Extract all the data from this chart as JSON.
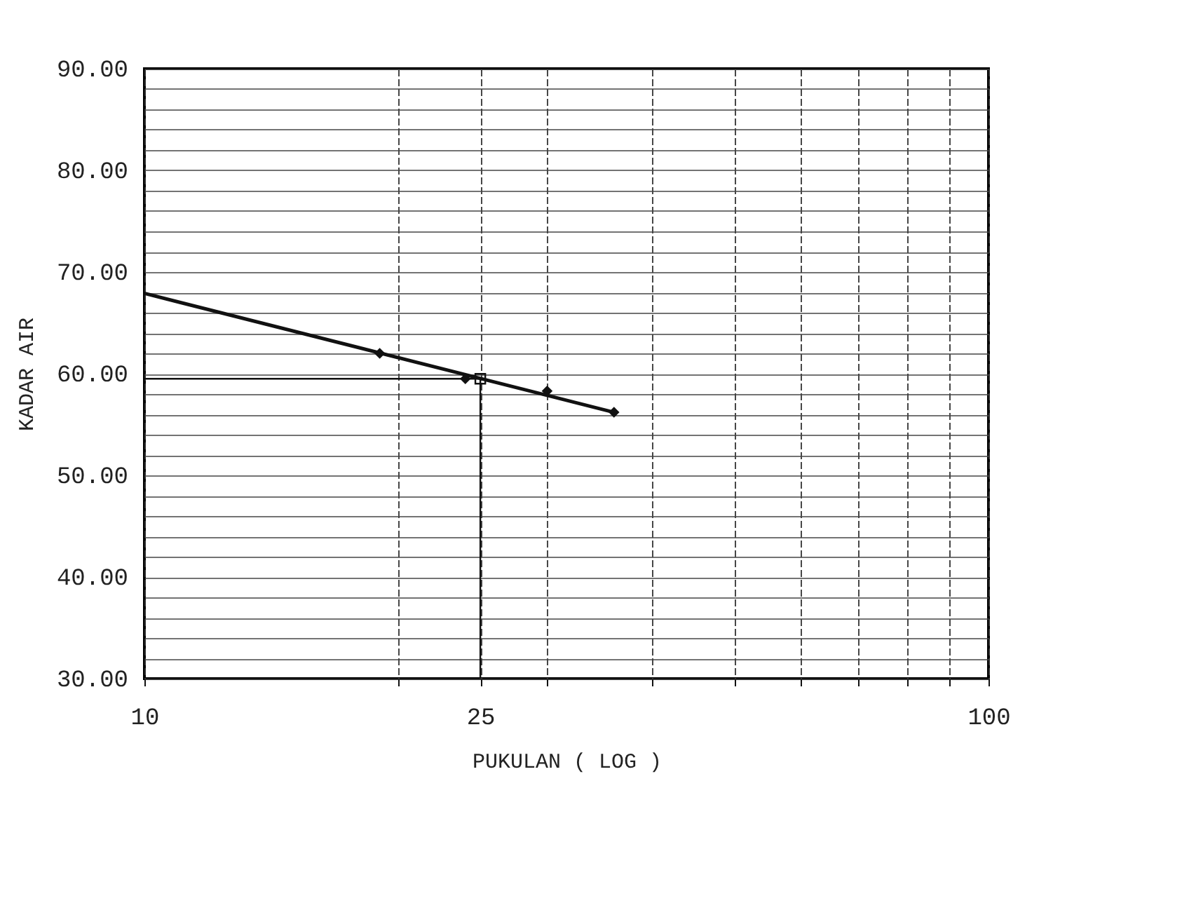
{
  "chart_data": {
    "type": "scatter",
    "xlabel": "PUKULAN ( LOG )",
    "ylabel": "KADAR AIR",
    "log": "x",
    "xlim": [
      10,
      100
    ],
    "ylim": [
      30,
      90
    ],
    "xticks": [
      10,
      {
        "value": 20,
        "label": null
      },
      {
        "value": 25,
        "label": "25"
      },
      {
        "value": 30,
        "label": null
      },
      {
        "value": 40,
        "label": null
      },
      {
        "value": 50,
        "label": null
      },
      {
        "value": 60,
        "label": null
      },
      {
        "value": 70,
        "label": null
      },
      {
        "value": 80,
        "label": null
      },
      {
        "value": 90,
        "label": null
      },
      100
    ],
    "yticks": [
      {
        "value": 30,
        "label": "30.00"
      },
      {
        "value": 32,
        "label": null
      },
      {
        "value": 34,
        "label": null
      },
      {
        "value": 36,
        "label": null
      },
      {
        "value": 38,
        "label": null
      },
      {
        "value": 40,
        "label": "40.00"
      },
      {
        "value": 42,
        "label": null
      },
      {
        "value": 44,
        "label": null
      },
      {
        "value": 46,
        "label": null
      },
      {
        "value": 48,
        "label": null
      },
      {
        "value": 50,
        "label": "50.00"
      },
      {
        "value": 52,
        "label": null
      },
      {
        "value": 54,
        "label": null
      },
      {
        "value": 56,
        "label": null
      },
      {
        "value": 58,
        "label": null
      },
      {
        "value": 60,
        "label": "60.00"
      },
      {
        "value": 62,
        "label": null
      },
      {
        "value": 64,
        "label": null
      },
      {
        "value": 66,
        "label": null
      },
      {
        "value": 68,
        "label": null
      },
      {
        "value": 70,
        "label": "70.00"
      },
      {
        "value": 72,
        "label": null
      },
      {
        "value": 74,
        "label": null
      },
      {
        "value": 76,
        "label": null
      },
      {
        "value": 78,
        "label": null
      },
      {
        "value": 80,
        "label": "80.00"
      },
      {
        "value": 82,
        "label": null
      },
      {
        "value": 84,
        "label": null
      },
      {
        "value": 86,
        "label": null
      },
      {
        "value": 88,
        "label": null
      },
      {
        "value": 90,
        "label": "90.00"
      }
    ],
    "grid": true,
    "series": [
      {
        "type": "line",
        "color": "#111111",
        "marker": "none",
        "line_style": "solid",
        "x": [
          10,
          36
        ],
        "values": [
          67.9,
          56.2
        ]
      },
      {
        "color": "#111111",
        "marker": "diamond",
        "x": [
          19,
          24,
          30,
          36
        ],
        "values": [
          62.0,
          59.5,
          58.3,
          56.2
        ]
      },
      {
        "color": "#111111",
        "marker": "square",
        "x": [
          25
        ],
        "values": [
          59.5
        ]
      }
    ],
    "ref_lines": [
      {
        "axis": "x",
        "value": 25,
        "color": "#111111"
      },
      {
        "axis": "y",
        "value": 59.5,
        "color": "#111111"
      }
    ]
  }
}
